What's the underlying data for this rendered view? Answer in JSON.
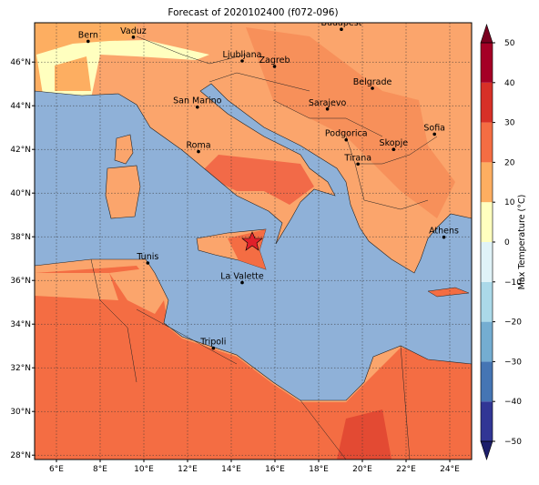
{
  "map": {
    "title": "Forecast of 2020102400 (f072-096)",
    "xlim": [
      5,
      25
    ],
    "ylim": [
      27.8,
      47.8
    ],
    "xticks": [
      {
        "value": 6,
        "label": "6°E"
      },
      {
        "value": 8,
        "label": "8°E"
      },
      {
        "value": 10,
        "label": "10°E"
      },
      {
        "value": 12,
        "label": "12°E"
      },
      {
        "value": 14,
        "label": "14°E"
      },
      {
        "value": 16,
        "label": "16°E"
      },
      {
        "value": 18,
        "label": "18°E"
      },
      {
        "value": 20,
        "label": "20°E"
      },
      {
        "value": 22,
        "label": "22°E"
      },
      {
        "value": 24,
        "label": "24°E"
      }
    ],
    "yticks": [
      {
        "value": 28,
        "label": "28°N"
      },
      {
        "value": 30,
        "label": "30°N"
      },
      {
        "value": 32,
        "label": "32°N"
      },
      {
        "value": 34,
        "label": "34°N"
      },
      {
        "value": 36,
        "label": "36°N"
      },
      {
        "value": 38,
        "label": "38°N"
      },
      {
        "value": 40,
        "label": "40°N"
      },
      {
        "value": 42,
        "label": "42°N"
      },
      {
        "value": 44,
        "label": "44°N"
      },
      {
        "value": 46,
        "label": "46°N"
      }
    ],
    "cities": [
      {
        "name": "Bern",
        "lon": 7.45,
        "lat": 46.95
      },
      {
        "name": "Vaduz",
        "lon": 9.52,
        "lat": 47.14
      },
      {
        "name": "Budapest",
        "lon": 19.04,
        "lat": 47.5
      },
      {
        "name": "Ljubljana",
        "lon": 14.5,
        "lat": 46.05
      },
      {
        "name": "Zagreb",
        "lon": 15.98,
        "lat": 45.8
      },
      {
        "name": "Belgrade",
        "lon": 20.46,
        "lat": 44.8
      },
      {
        "name": "San Marino",
        "lon": 12.45,
        "lat": 43.94
      },
      {
        "name": "Sarajevo",
        "lon": 18.4,
        "lat": 43.85
      },
      {
        "name": "Sofia",
        "lon": 23.3,
        "lat": 42.7
      },
      {
        "name": "Roma",
        "lon": 12.5,
        "lat": 41.9
      },
      {
        "name": "Podgorica",
        "lon": 19.26,
        "lat": 42.44
      },
      {
        "name": "Skopje",
        "lon": 21.43,
        "lat": 42.0
      },
      {
        "name": "Tirana",
        "lon": 19.8,
        "lat": 41.33
      },
      {
        "name": "Athens",
        "lon": 23.73,
        "lat": 37.98
      },
      {
        "name": "Tunis",
        "lon": 10.18,
        "lat": 36.8
      },
      {
        "name": "La Valette",
        "lon": 14.5,
        "lat": 35.9
      },
      {
        "name": "Tripoli",
        "lon": 13.18,
        "lat": 32.9
      }
    ],
    "colorbar": {
      "label": "Max Temperature (°C)",
      "lim": [
        -50,
        50
      ],
      "ticks": [
        {
          "value": -50,
          "label": "−50"
        },
        {
          "value": -40,
          "label": "−40"
        },
        {
          "value": -30,
          "label": "−30"
        },
        {
          "value": -20,
          "label": "−20"
        },
        {
          "value": -10,
          "label": "−10"
        },
        0,
        10,
        20,
        30,
        40,
        50
      ],
      "colors": [
        "#313695",
        "#4575b4",
        "#74add1",
        "#abd9e9",
        "#e0f3f8",
        "#ffffbf",
        "#fdae61",
        "#f46d43",
        "#d73027",
        "#a50026"
      ],
      "extend_colors": [
        "#1d1f6b",
        "#7a0020"
      ]
    }
  }
}
